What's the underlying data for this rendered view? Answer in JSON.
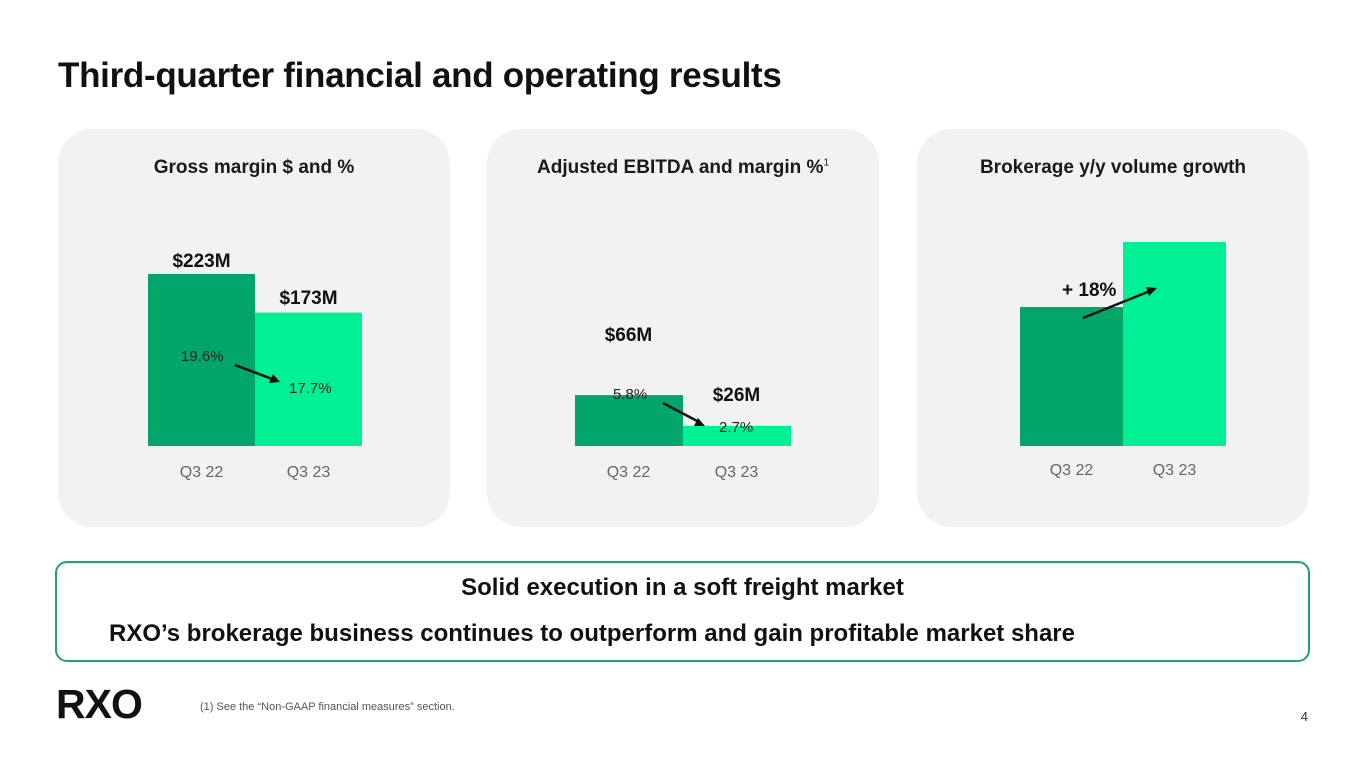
{
  "slide": {
    "title": "Third-quarter financial and operating results",
    "page_number": "4"
  },
  "panels": [
    {
      "title": "Gross margin $ and %",
      "footnote_marker": "",
      "chart_data": {
        "type": "bar",
        "categories": [
          "Q3 22",
          "Q3 23"
        ],
        "values_musd": [
          223,
          173
        ],
        "value_labels": [
          "$223M",
          "$173M"
        ],
        "margin_labels": [
          "19.6%",
          "17.7%"
        ]
      }
    },
    {
      "title": "Adjusted EBITDA and margin %",
      "footnote_marker": "1",
      "chart_data": {
        "type": "bar",
        "categories": [
          "Q3 22",
          "Q3 23"
        ],
        "values_musd": [
          66,
          26
        ],
        "value_labels": [
          "$66M",
          "$26M"
        ],
        "margin_labels": [
          "5.8%",
          "2.7%"
        ]
      }
    },
    {
      "title": "Brokerage y/y volume growth",
      "footnote_marker": "",
      "chart_data": {
        "type": "bar",
        "categories": [
          "Q3 22",
          "Q3 23"
        ],
        "growth_label": "+ 18%",
        "growth_pct": 18
      }
    }
  ],
  "colors": {
    "q3_22_bar": "#00a66a",
    "q3_23_bar": "#00f096",
    "panel_bg": "#f2f2f2",
    "callout_border": "#1aa66c"
  },
  "callout": {
    "headline": "Solid execution in a soft freight market",
    "body": "RXO’s brokerage business continues to outperform and gain profitable market share"
  },
  "footer": {
    "logo_text": "RXO",
    "footnote": "(1) See the “Non-GAAP financial measures” section."
  }
}
